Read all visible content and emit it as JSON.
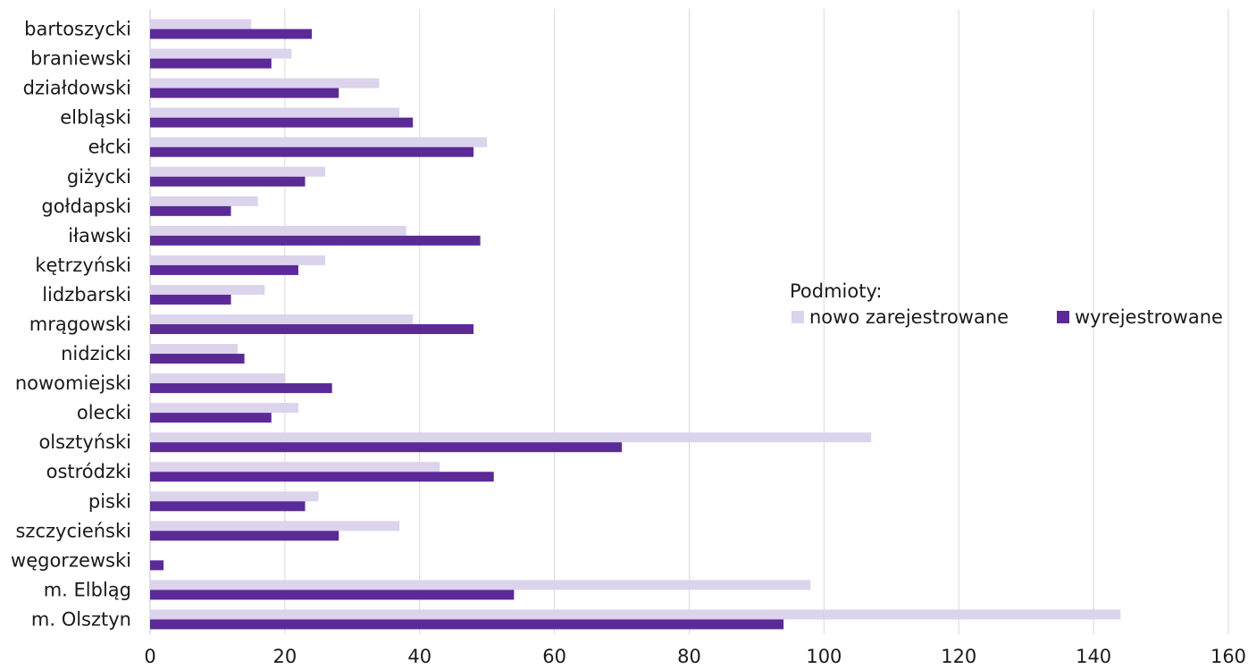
{
  "chart_data": {
    "type": "bar",
    "orientation": "horizontal",
    "categories": [
      "bartoszycki",
      "braniewski",
      "działdowski",
      "elbląski",
      "ełcki",
      "giżycki",
      "gołdapski",
      "iławski",
      "kętrzyński",
      "lidzbarski",
      "mrągowski",
      "nidzicki",
      "nowomiejski",
      "olecki",
      "olsztyński",
      "ostródzki",
      "piski",
      "szczycieński",
      "węgorzewski",
      "m. Elbląg",
      "m. Olsztyn"
    ],
    "series": [
      {
        "name": "nowo zarejestrowane",
        "color": "#dcd3ec",
        "values": [
          15,
          21,
          34,
          37,
          50,
          26,
          16,
          38,
          26,
          17,
          39,
          13,
          20,
          22,
          107,
          43,
          25,
          37,
          0,
          98,
          144
        ]
      },
      {
        "name": "wyrejestrowane",
        "color": "#5b2a96",
        "values": [
          24,
          18,
          28,
          39,
          48,
          23,
          12,
          49,
          22,
          12,
          48,
          14,
          27,
          18,
          70,
          51,
          23,
          28,
          2,
          54,
          94
        ]
      }
    ],
    "xlim": [
      0,
      160
    ],
    "xticks": [
      "0",
      "20",
      "40",
      "60",
      "80",
      "100",
      "120",
      "140",
      "160"
    ],
    "grid": true,
    "gridColor": "#d9d9d9",
    "legend": {
      "title": "Podmioty:",
      "placement": "right"
    },
    "title": "",
    "xlabel": "",
    "ylabel": ""
  }
}
